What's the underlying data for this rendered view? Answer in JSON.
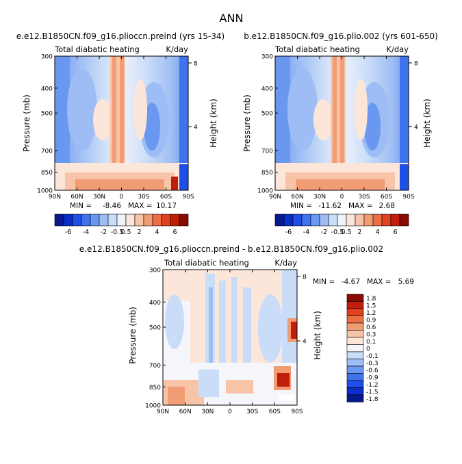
{
  "page_title": "ANN",
  "chart_data": [
    {
      "type": "heatmap",
      "title": "e.e12.B1850CN.f09_g16.plioccn.preind (yrs 15-34)",
      "subtitle_left": "Total diabatic heating",
      "subtitle_right": "K/day",
      "ylabel": "Pressure (mb)",
      "ylabel_right": "Height (km)",
      "x_ticks": [
        "90N",
        "60N",
        "30N",
        "0",
        "30S",
        "60S",
        "90S"
      ],
      "y_ticks": [
        "300",
        "400",
        "500",
        "700",
        "850",
        "1000"
      ],
      "right_ticks": [
        "8",
        "4"
      ],
      "stats": {
        "min_label": "MIN =",
        "min": "-8.46",
        "max_label": "MAX =",
        "max": "10.17"
      },
      "colorbar": {
        "orientation": "horizontal",
        "labels": [
          "-6",
          "-4",
          "-2",
          "-0.5",
          "0.5",
          "2",
          "4",
          "6"
        ]
      }
    },
    {
      "type": "heatmap",
      "title": "b.e12.B1850CN.f09_g16.plio.002 (yrs 601-650)",
      "subtitle_left": "Total diabatic heating",
      "subtitle_right": "K/day",
      "ylabel": "Pressure (mb)",
      "ylabel_right": "Height (km)",
      "x_ticks": [
        "90N",
        "60N",
        "30N",
        "0",
        "30S",
        "60S",
        "90S"
      ],
      "y_ticks": [
        "300",
        "400",
        "500",
        "700",
        "850",
        "1000"
      ],
      "right_ticks": [
        "8",
        "4"
      ],
      "stats": {
        "min_label": "MIN =",
        "min": "-11.62",
        "max_label": "MAX =",
        "max": "2.68"
      },
      "colorbar": {
        "orientation": "horizontal",
        "labels": [
          "-6",
          "-4",
          "-2",
          "-0.5",
          "0.5",
          "2",
          "4",
          "6"
        ]
      }
    },
    {
      "type": "heatmap",
      "title": "e.e12.B1850CN.f09_g16.plioccn.preind - b.e12.B1850CN.f09_g16.plio.002",
      "subtitle_left": "Total diabatic heating",
      "subtitle_right": "K/day",
      "ylabel": "Pressure (mb)",
      "ylabel_right": "Height (km)",
      "x_ticks": [
        "90N",
        "60N",
        "30N",
        "0",
        "30S",
        "60S",
        "90S"
      ],
      "y_ticks": [
        "300",
        "400",
        "500",
        "700",
        "850",
        "1000"
      ],
      "right_ticks": [
        "8",
        "4"
      ],
      "stats": {
        "min_label": "MIN =",
        "min": "-4.67",
        "max_label": "MAX =",
        "max": "5.69"
      },
      "colorbar": {
        "orientation": "vertical",
        "labels": [
          "1.8",
          "1.5",
          "1.2",
          "0.9",
          "0.6",
          "0.3",
          "0.1",
          "0",
          "-0.1",
          "-0.3",
          "-0.6",
          "-0.9",
          "-1.2",
          "-1.5",
          "-1.8"
        ]
      }
    }
  ],
  "colors": {
    "abs_scale": [
      "#08188e",
      "#0a2ec8",
      "#1e4fe6",
      "#3f73ee",
      "#6a97f0",
      "#9dbdf4",
      "#c9dcf8",
      "#eef3fc",
      "#fbe6d9",
      "#f7c4a8",
      "#f29c74",
      "#ec6f45",
      "#e0421f",
      "#c01e0a",
      "#8a0a04"
    ],
    "diff_scale": [
      "#8a0a04",
      "#c01e0a",
      "#e0421f",
      "#ec6f45",
      "#f29c74",
      "#f7c4a8",
      "#fbe6d9",
      "#f4f6fb",
      "#c9dcf8",
      "#9dbdf4",
      "#6a97f0",
      "#3f73ee",
      "#1e4fe6",
      "#0a2ec8",
      "#08188e"
    ]
  }
}
